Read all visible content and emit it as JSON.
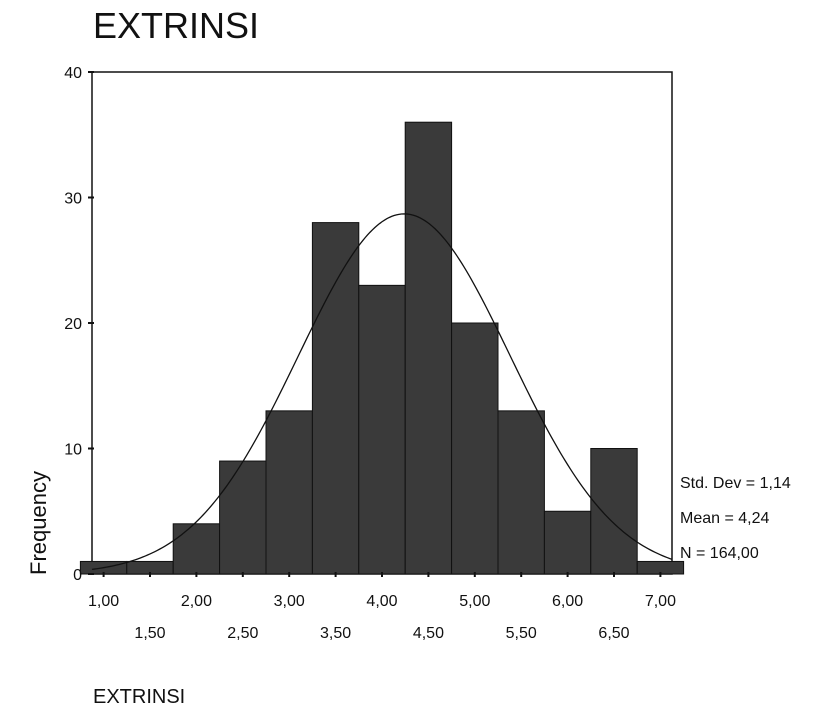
{
  "chart_data": {
    "type": "bar",
    "title": "EXTRINSI",
    "xlabel": "EXTRINSI",
    "ylabel": "Frequency",
    "ylim": [
      0,
      40
    ],
    "yticks": [
      "0",
      "10",
      "20",
      "30",
      "40"
    ],
    "xlim": [
      0.875,
      7.125
    ],
    "bin_width": 0.5,
    "bin_centers": [
      1.0,
      1.5,
      2.0,
      2.5,
      3.0,
      3.5,
      4.0,
      4.5,
      5.0,
      5.5,
      6.0,
      6.5,
      7.0
    ],
    "values": [
      1,
      1,
      4,
      9,
      13,
      28,
      23,
      36,
      20,
      13,
      5,
      10,
      1
    ],
    "xtick_labels_upper": [
      "1,00",
      "2,00",
      "3,00",
      "4,00",
      "5,00",
      "6,00",
      "7,00"
    ],
    "xtick_labels_lower": [
      "1,50",
      "2,50",
      "3,50",
      "4,50",
      "5,50",
      "6,50"
    ],
    "normal_curve": {
      "mean": 4.24,
      "std_dev": 1.14,
      "n": 164
    },
    "stats": [
      "Std. Dev = 1,14",
      "Mean = 4,24",
      "N = 164,00"
    ],
    "grid": false,
    "legend": "none",
    "bar_color": "#3a3a3a"
  }
}
